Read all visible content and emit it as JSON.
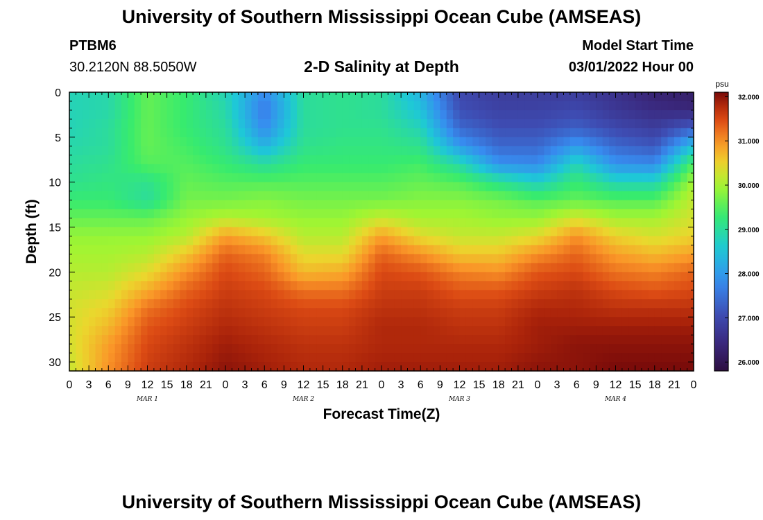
{
  "page": {
    "title_top": "University of Southern Mississippi Ocean Cube (AMSEAS)",
    "title_bottom": "University of Southern Mississippi Ocean Cube (AMSEAS)",
    "station": "PTBM6",
    "coordinates": "30.2120N  88.5050W",
    "subtitle": "2-D Salinity at Depth",
    "model_start_label": "Model Start Time",
    "model_start_value": "03/01/2022 Hour 00"
  },
  "chart_data": {
    "type": "heatmap",
    "title": "2-D Salinity at Depth",
    "xlabel": "Forecast Time(Z)",
    "ylabel": "Depth (ft)",
    "x_range_hours": [
      0,
      96
    ],
    "y_range_ft": [
      0,
      31
    ],
    "y_inverted": true,
    "x_tick_labels": [
      "0",
      "3",
      "6",
      "9",
      "12",
      "15",
      "18",
      "21",
      "0",
      "3",
      "6",
      "9",
      "12",
      "15",
      "18",
      "21",
      "0",
      "3",
      "6",
      "9",
      "12",
      "15",
      "18",
      "21",
      "0",
      "3",
      "6",
      "9",
      "12",
      "15",
      "18",
      "21",
      "0"
    ],
    "y_ticks": [
      0,
      5,
      10,
      15,
      20,
      25,
      30
    ],
    "day_labels": [
      {
        "label": "MAR 1",
        "hour": 12
      },
      {
        "label": "MAR 2",
        "hour": 36
      },
      {
        "label": "MAR 3",
        "hour": 60
      },
      {
        "label": "MAR 4",
        "hour": 84
      }
    ],
    "colorbar": {
      "unit": "psu",
      "min": 25.8,
      "max": 32.1,
      "ticks": [
        "32.000",
        "31.000",
        "30.000",
        "29.000",
        "28.000",
        "27.000",
        "26.000"
      ],
      "tick_values": [
        32,
        31,
        30,
        29,
        28,
        27,
        26
      ]
    },
    "depths_ft": [
      0,
      2,
      4,
      6,
      8,
      10,
      12,
      14,
      16,
      18,
      20,
      22,
      24,
      26,
      28,
      31
    ],
    "times_h": [
      0,
      6,
      12,
      18,
      24,
      30,
      36,
      42,
      48,
      54,
      60,
      66,
      72,
      78,
      84,
      90,
      96
    ],
    "salinity_psu": [
      [
        28.8,
        28.9,
        29.6,
        29.3,
        28.8,
        27.8,
        29.0,
        29.1,
        29.0,
        28.3,
        27.0,
        26.8,
        26.8,
        26.8,
        26.6,
        26.3,
        26.2
      ],
      [
        28.8,
        28.9,
        29.6,
        29.3,
        28.9,
        27.6,
        29.0,
        29.1,
        29.0,
        28.5,
        27.1,
        26.9,
        26.9,
        27.0,
        26.7,
        26.5,
        26.4
      ],
      [
        28.8,
        29.0,
        29.6,
        29.3,
        29.0,
        27.8,
        29.0,
        29.1,
        29.1,
        28.8,
        27.4,
        27.1,
        27.1,
        27.3,
        27.0,
        26.8,
        27.3
      ],
      [
        28.9,
        29.0,
        29.6,
        29.4,
        29.1,
        28.3,
        29.1,
        29.2,
        29.2,
        29.1,
        28.0,
        27.4,
        27.4,
        28.0,
        27.4,
        27.2,
        28.5
      ],
      [
        29.0,
        29.1,
        29.5,
        29.5,
        29.3,
        29.0,
        29.3,
        29.3,
        29.3,
        29.4,
        28.9,
        27.9,
        27.8,
        28.8,
        27.9,
        27.8,
        29.5
      ],
      [
        29.1,
        29.2,
        29.1,
        29.6,
        29.5,
        29.5,
        29.5,
        29.5,
        29.5,
        29.6,
        29.5,
        29.1,
        28.7,
        29.3,
        28.8,
        28.8,
        30.0
      ],
      [
        29.3,
        29.3,
        29.0,
        29.7,
        29.7,
        29.8,
        29.7,
        29.7,
        29.7,
        29.8,
        29.8,
        29.7,
        29.5,
        29.6,
        29.5,
        29.5,
        30.2
      ],
      [
        29.6,
        29.6,
        29.6,
        29.9,
        30.1,
        30.0,
        29.9,
        29.9,
        30.2,
        30.0,
        30.0,
        29.9,
        29.9,
        30.3,
        30.0,
        30.0,
        30.3
      ],
      [
        29.9,
        29.9,
        29.9,
        30.1,
        30.9,
        30.6,
        30.1,
        30.1,
        30.9,
        30.4,
        30.2,
        30.2,
        30.4,
        31.0,
        30.5,
        30.3,
        30.5
      ],
      [
        30.0,
        30.0,
        30.1,
        30.6,
        31.3,
        31.1,
        30.4,
        30.4,
        31.3,
        31.0,
        30.6,
        30.6,
        31.0,
        31.3,
        30.9,
        30.7,
        30.9
      ],
      [
        30.1,
        30.1,
        30.4,
        31.0,
        31.5,
        31.3,
        30.7,
        30.8,
        31.5,
        31.4,
        31.1,
        31.0,
        31.4,
        31.5,
        31.2,
        31.1,
        31.3
      ],
      [
        30.2,
        30.3,
        30.8,
        31.3,
        31.6,
        31.5,
        31.2,
        31.2,
        31.6,
        31.6,
        31.4,
        31.4,
        31.6,
        31.7,
        31.5,
        31.4,
        31.5
      ],
      [
        30.3,
        30.5,
        31.2,
        31.5,
        31.7,
        31.6,
        31.5,
        31.5,
        31.7,
        31.7,
        31.6,
        31.6,
        31.8,
        31.8,
        31.7,
        31.7,
        31.7
      ],
      [
        30.3,
        30.7,
        31.4,
        31.6,
        31.8,
        31.7,
        31.6,
        31.6,
        31.8,
        31.8,
        31.7,
        31.7,
        31.9,
        31.9,
        31.9,
        31.9,
        31.9
      ],
      [
        30.3,
        30.9,
        31.5,
        31.7,
        31.9,
        31.8,
        31.7,
        31.7,
        31.8,
        31.8,
        31.8,
        31.8,
        31.9,
        32.0,
        32.0,
        32.0,
        32.0
      ],
      [
        30.2,
        31.0,
        31.6,
        31.8,
        32.0,
        31.9,
        31.8,
        31.8,
        31.9,
        31.9,
        31.9,
        31.9,
        32.0,
        32.0,
        32.1,
        32.1,
        32.1
      ]
    ]
  }
}
